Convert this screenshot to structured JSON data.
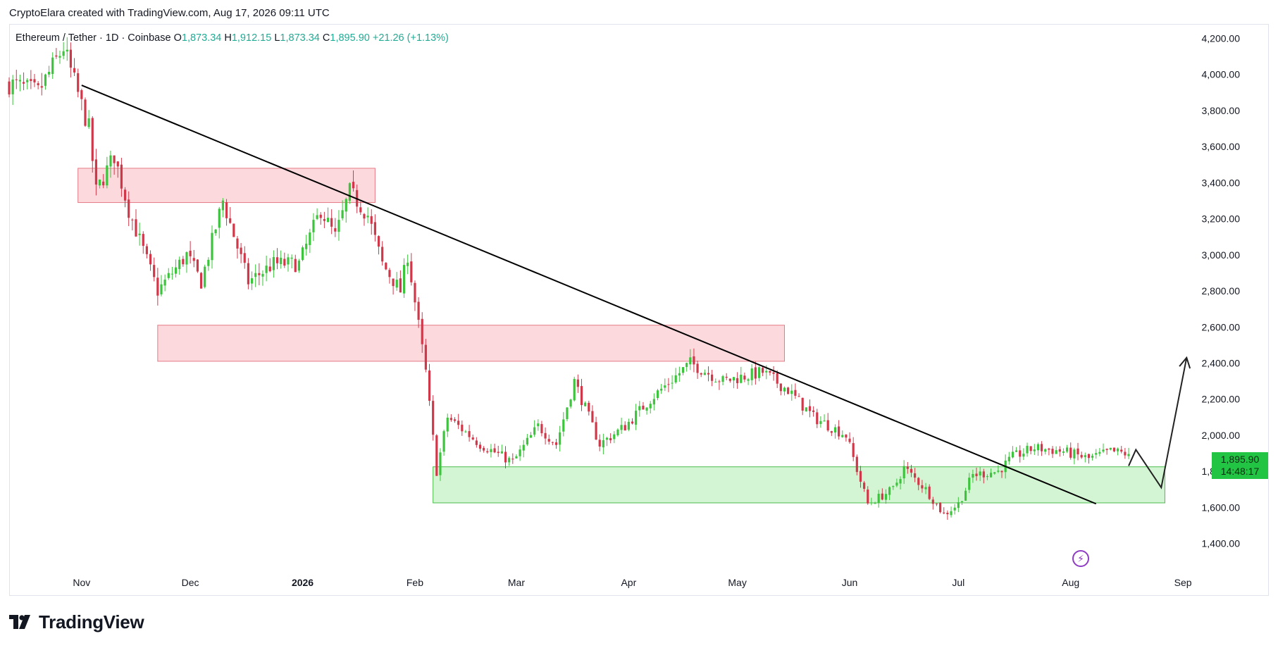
{
  "header": {
    "attribution": "CryptoElara created with TradingView.com, Aug 17, 2026 09:11 UTC"
  },
  "legend": {
    "symbol": "Ethereum / Tether · 1D · Coinbase",
    "open_label": "O",
    "open": "1,873.34",
    "high_label": "H",
    "high": "1,912.15",
    "low_label": "L",
    "low": "1,873.34",
    "close_label": "C",
    "close": "1,895.90",
    "change": "+21.26 (+1.13%)"
  },
  "price_badge": {
    "price": "1,895.90",
    "countdown": "14:48:17"
  },
  "footer": {
    "brand": "TradingView"
  },
  "colors": {
    "up": "#22ab94",
    "up_candle": "#3cc43c",
    "down_candle": "#d0384a",
    "resistance_fill": "#fcd9dc",
    "resistance_stroke": "#e57a86",
    "support_fill": "#d3f5d3",
    "support_stroke": "#4bbd4b",
    "trendline": "#000000",
    "badge": "#22c443"
  },
  "icons": {
    "logo": "tradingview-logo-icon",
    "flash": "lightning-bolt-icon"
  },
  "chart_data": {
    "type": "candlestick",
    "title": "",
    "y_axis_side": "right",
    "ylim": [
      1250,
      4280
    ],
    "y_ticks": [
      4200,
      4000,
      3800,
      3600,
      3400,
      3200,
      3000,
      2800,
      2600,
      2400,
      2200,
      2000,
      1800,
      1600,
      1400
    ],
    "y_tick_labels": [
      "4,200.00",
      "4,000.00",
      "3,800.00",
      "3,600.00",
      "3,400.00",
      "3,200.00",
      "3,000.00",
      "2,800.00",
      "2,600.00",
      "2,400.00",
      "2,200.00",
      "2,000.00",
      "1,800.00",
      "1,600.00",
      "1,400.00"
    ],
    "x_ticks": [
      {
        "label": "Nov",
        "date": "2025-11-01",
        "bold": false
      },
      {
        "label": "Dec",
        "date": "2025-12-01",
        "bold": false
      },
      {
        "label": "2026",
        "date": "2026-01-01",
        "bold": true
      },
      {
        "label": "Feb",
        "date": "2026-02-01",
        "bold": false
      },
      {
        "label": "Mar",
        "date": "2026-03-01",
        "bold": false
      },
      {
        "label": "Apr",
        "date": "2026-04-01",
        "bold": false
      },
      {
        "label": "May",
        "date": "2026-05-01",
        "bold": false
      },
      {
        "label": "Jun",
        "date": "2026-06-01",
        "bold": false
      },
      {
        "label": "Jul",
        "date": "2026-07-01",
        "bold": false
      },
      {
        "label": "Aug",
        "date": "2026-08-01",
        "bold": false
      },
      {
        "label": "Sep",
        "date": "2026-09-01",
        "bold": false
      }
    ],
    "x_range": [
      "2025-10-12",
      "2026-09-07"
    ],
    "last_bar": "2026-08-17",
    "price_waypoints": [
      [
        "2025-10-12",
        3950
      ],
      [
        "2025-10-20",
        3900
      ],
      [
        "2025-10-27",
        4150
      ],
      [
        "2025-11-03",
        3700
      ],
      [
        "2025-11-05",
        3350
      ],
      [
        "2025-11-10",
        3550
      ],
      [
        "2025-11-14",
        3250
      ],
      [
        "2025-11-22",
        2800
      ],
      [
        "2025-11-30",
        3000
      ],
      [
        "2025-12-04",
        2850
      ],
      [
        "2025-12-10",
        3300
      ],
      [
        "2025-12-17",
        2850
      ],
      [
        "2025-12-24",
        2950
      ],
      [
        "2025-12-31",
        2950
      ],
      [
        "2026-01-06",
        3250
      ],
      [
        "2026-01-10",
        3100
      ],
      [
        "2026-01-14",
        3350
      ],
      [
        "2026-01-19",
        3220
      ],
      [
        "2026-01-23",
        2950
      ],
      [
        "2026-01-28",
        2800
      ],
      [
        "2026-01-30",
        3000
      ],
      [
        "2026-02-04",
        2350
      ],
      [
        "2026-02-07",
        1800
      ],
      [
        "2026-02-10",
        2100
      ],
      [
        "2026-02-19",
        1950
      ],
      [
        "2026-02-28",
        1850
      ],
      [
        "2026-03-07",
        2050
      ],
      [
        "2026-03-12",
        1950
      ],
      [
        "2026-03-17",
        2300
      ],
      [
        "2026-03-24",
        1950
      ],
      [
        "2026-03-31",
        2050
      ],
      [
        "2026-04-07",
        2200
      ],
      [
        "2026-04-18",
        2400
      ],
      [
        "2026-04-27",
        2300
      ],
      [
        "2026-05-08",
        2350
      ],
      [
        "2026-05-15",
        2250
      ],
      [
        "2026-05-22",
        2100
      ],
      [
        "2026-05-31",
        2000
      ],
      [
        "2026-06-06",
        1620
      ],
      [
        "2026-06-13",
        1700
      ],
      [
        "2026-06-16",
        1820
      ],
      [
        "2026-06-22",
        1700
      ],
      [
        "2026-06-27",
        1560
      ],
      [
        "2026-07-01",
        1620
      ],
      [
        "2026-07-05",
        1780
      ],
      [
        "2026-07-12",
        1800
      ],
      [
        "2026-07-16",
        1880
      ],
      [
        "2026-07-22",
        1930
      ],
      [
        "2026-07-30",
        1910
      ],
      [
        "2026-08-06",
        1870
      ],
      [
        "2026-08-12",
        1910
      ],
      [
        "2026-08-17",
        1895.9
      ]
    ],
    "zones": [
      {
        "kind": "resistance",
        "from": "2025-10-31",
        "to": "2026-01-21",
        "low": 3290,
        "high": 3480
      },
      {
        "kind": "resistance",
        "from": "2025-11-22",
        "to": "2026-05-14",
        "low": 2410,
        "high": 2610
      },
      {
        "kind": "support",
        "from": "2026-02-06",
        "to": "2026-08-27",
        "low": 1625,
        "high": 1825
      }
    ],
    "trendline": {
      "start": [
        "2025-11-01",
        3940
      ],
      "end": [
        "2026-08-08",
        1620
      ]
    },
    "projection": [
      [
        "2026-08-17",
        1830
      ],
      [
        "2026-08-19",
        1920
      ],
      [
        "2026-08-26",
        1710
      ],
      [
        "2026-09-02",
        2430
      ]
    ],
    "last_price": 1895.9
  }
}
